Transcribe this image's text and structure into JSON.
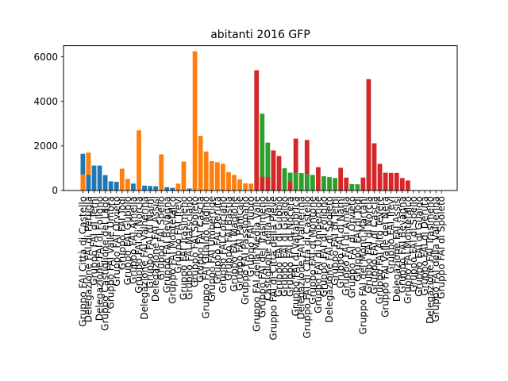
{
  "chart_data": {
    "type": "bar",
    "title": "abitanti  2016  GFP",
    "xlabel": "",
    "ylabel": "",
    "ylim": [
      0,
      6500
    ],
    "yticks": [
      0,
      2000,
      4000,
      6000
    ],
    "grid": false,
    "colors": {
      "blue": "#1f77b4",
      "orange": "#ff7f0e",
      "green": "#2ca02c",
      "red": "#d62728"
    },
    "bars": [
      {
        "slot": 0,
        "color": "blue",
        "value": 1650
      },
      {
        "slot": 0,
        "color": "orange",
        "value": 720
      },
      {
        "slot": 1,
        "color": "orange",
        "value": 1700
      },
      {
        "slot": 1,
        "color": "blue",
        "value": 700
      },
      {
        "slot": 2,
        "color": "blue",
        "value": 1120
      },
      {
        "slot": 3,
        "color": "blue",
        "value": 1120
      },
      {
        "slot": 4,
        "color": "blue",
        "value": 690
      },
      {
        "slot": 5,
        "color": "blue",
        "value": 410
      },
      {
        "slot": 6,
        "color": "blue",
        "value": 390
      },
      {
        "slot": 7,
        "color": "orange",
        "value": 980
      },
      {
        "slot": 8,
        "color": "orange",
        "value": 520
      },
      {
        "slot": 9,
        "color": "blue",
        "value": 310
      },
      {
        "slot": 10,
        "color": "orange",
        "value": 2700
      },
      {
        "slot": 11,
        "color": "blue",
        "value": 220
      },
      {
        "slot": 12,
        "color": "blue",
        "value": 200
      },
      {
        "slot": 13,
        "color": "blue",
        "value": 190
      },
      {
        "slot": 14,
        "color": "orange",
        "value": 1620
      },
      {
        "slot": 15,
        "color": "blue",
        "value": 150
      },
      {
        "slot": 16,
        "color": "blue",
        "value": 120
      },
      {
        "slot": 17,
        "color": "orange",
        "value": 310
      },
      {
        "slot": 18,
        "color": "orange",
        "value": 1300
      },
      {
        "slot": 19,
        "color": "blue",
        "value": 90
      },
      {
        "slot": 20,
        "color": "orange",
        "value": 6250
      },
      {
        "slot": 21,
        "color": "orange",
        "value": 2450
      },
      {
        "slot": 22,
        "color": "orange",
        "value": 1750
      },
      {
        "slot": 23,
        "color": "orange",
        "value": 1320
      },
      {
        "slot": 24,
        "color": "orange",
        "value": 1270
      },
      {
        "slot": 25,
        "color": "orange",
        "value": 1200
      },
      {
        "slot": 26,
        "color": "orange",
        "value": 820
      },
      {
        "slot": 27,
        "color": "orange",
        "value": 700
      },
      {
        "slot": 28,
        "color": "orange",
        "value": 500
      },
      {
        "slot": 29,
        "color": "orange",
        "value": 320
      },
      {
        "slot": 30,
        "color": "orange",
        "value": 310
      },
      {
        "slot": 31,
        "color": "red",
        "value": 5400
      },
      {
        "slot": 32,
        "color": "green",
        "value": 3450
      },
      {
        "slot": 32,
        "color": "red",
        "value": 620
      },
      {
        "slot": 33,
        "color": "green",
        "value": 2150
      },
      {
        "slot": 33,
        "color": "red",
        "value": 600
      },
      {
        "slot": 34,
        "color": "red",
        "value": 1800
      },
      {
        "slot": 35,
        "color": "red",
        "value": 1550
      },
      {
        "slot": 36,
        "color": "green",
        "value": 1000
      },
      {
        "slot": 37,
        "color": "green",
        "value": 800
      },
      {
        "slot": 37,
        "color": "red",
        "value": 400
      },
      {
        "slot": 38,
        "color": "red",
        "value": 2330
      },
      {
        "slot": 38,
        "color": "green",
        "value": 800
      },
      {
        "slot": 39,
        "color": "green",
        "value": 780
      },
      {
        "slot": 40,
        "color": "red",
        "value": 2270
      },
      {
        "slot": 40,
        "color": "green",
        "value": 750
      },
      {
        "slot": 41,
        "color": "green",
        "value": 700
      },
      {
        "slot": 42,
        "color": "red",
        "value": 1050
      },
      {
        "slot": 43,
        "color": "green",
        "value": 640
      },
      {
        "slot": 44,
        "color": "green",
        "value": 600
      },
      {
        "slot": 45,
        "color": "green",
        "value": 560
      },
      {
        "slot": 46,
        "color": "red",
        "value": 1020
      },
      {
        "slot": 47,
        "color": "red",
        "value": 580
      },
      {
        "slot": 48,
        "color": "green",
        "value": 290
      },
      {
        "slot": 49,
        "color": "green",
        "value": 280
      },
      {
        "slot": 50,
        "color": "red",
        "value": 580
      },
      {
        "slot": 51,
        "color": "red",
        "value": 5000
      },
      {
        "slot": 52,
        "color": "red",
        "value": 2120
      },
      {
        "slot": 53,
        "color": "red",
        "value": 1200
      },
      {
        "slot": 54,
        "color": "red",
        "value": 800
      },
      {
        "slot": 55,
        "color": "red",
        "value": 790
      },
      {
        "slot": 56,
        "color": "red",
        "value": 790
      },
      {
        "slot": 57,
        "color": "red",
        "value": 560
      },
      {
        "slot": 58,
        "color": "red",
        "value": 450
      },
      {
        "slot": 59,
        "color": "red",
        "value": 20
      },
      {
        "slot": 60,
        "color": "red",
        "value": 10
      },
      {
        "slot": 61,
        "color": "red",
        "value": 10
      },
      {
        "slot": 62,
        "color": "red",
        "value": 10
      },
      {
        "slot": 63,
        "color": "red",
        "value": 10
      },
      {
        "slot": 64,
        "color": "red",
        "value": 10
      }
    ],
    "labels": [
      {
        "slot": 0,
        "text": "Gruppo FAI Città di Castello"
      },
      {
        "slot": 1,
        "text": "Delegazione FAI di Perugia"
      },
      {
        "slot": 2,
        "text": "Gruppo FAI di Terni"
      },
      {
        "slot": 3,
        "text": "Delegazione FAI di Foligno"
      },
      {
        "slot": 4,
        "text": "Gruppo Castiglione del Lago"
      },
      {
        "slot": 5,
        "text": "Gruppo FAI Valle Umbra"
      },
      {
        "slot": 6,
        "text": "Gruppo FAI Orvieto"
      },
      {
        "slot": 7,
        "text": "Gruppo FAI Todi"
      },
      {
        "slot": 8,
        "text": "Gruppo FAI Gubbio"
      },
      {
        "slot": 9,
        "text": "Gruppo FAI Amelia"
      },
      {
        "slot": 10,
        "text": "Gruppo FAI di Norcia"
      },
      {
        "slot": 11,
        "text": "Delegazione FAI Valnerina"
      },
      {
        "slot": 12,
        "text": "Gruppo FAI di Narni"
      },
      {
        "slot": 13,
        "text": "Delegazione FAI Assisi"
      },
      {
        "slot": 14,
        "text": "Gruppo FAI Spello"
      },
      {
        "slot": 15,
        "text": "Gruppo FAI Bevagna"
      },
      {
        "slot": 16,
        "text": "Gruppo FAI Montefalco"
      },
      {
        "slot": 17,
        "text": "Gruppo FAI Trevi"
      },
      {
        "slot": 18,
        "text": "Gruppo FAI Trasimeno"
      },
      {
        "slot": 19,
        "text": "Gruppo FAI Marsciano"
      },
      {
        "slot": 20,
        "text": "Gruppo FAI Spoleto"
      },
      {
        "slot": 21,
        "text": "Gruppo FAI Cascia"
      },
      {
        "slot": 22,
        "text": "Gruppo FAI Gualdo Tadino"
      },
      {
        "slot": 23,
        "text": "Gruppo FAI Umbertide"
      },
      {
        "slot": 24,
        "text": "Gruppo FAI Deruta"
      },
      {
        "slot": 25,
        "text": "Gruppo FAI Corciano"
      },
      {
        "slot": 26,
        "text": "Gruppo FAI Bastia"
      },
      {
        "slot": 27,
        "text": "Gruppo FAI Magione"
      },
      {
        "slot": 28,
        "text": "Gruppo FAI Panicale"
      },
      {
        "slot": 29,
        "text": "Gruppo FAI Passignano"
      },
      {
        "slot": 30,
        "text": "Gruppo FAI Tuoro"
      },
      {
        "slot": 31,
        "text": "Gruppo FAI della Media Valle"
      },
      {
        "slot": 32,
        "text": "Gruppo FAI del Trasimeno"
      },
      {
        "slot": 33,
        "text": "Castiglione della Valle"
      },
      {
        "slot": 34,
        "text": "Gruppo FAI di Città della Pieve"
      },
      {
        "slot": 35,
        "text": "Gruppo FAI di Gubbio"
      },
      {
        "slot": 36,
        "text": "Gruppo FAI di Gualdo"
      },
      {
        "slot": 37,
        "text": "Gruppo FAI di Nocera"
      },
      {
        "slot": 38,
        "text": "Gruppo FAI di Valfabbrica"
      },
      {
        "slot": 39,
        "text": "Delegazione FAI Valnerina"
      },
      {
        "slot": 40,
        "text": "Gruppo FAI di Città di Castello"
      },
      {
        "slot": 41,
        "text": "Gruppo FAI di Montone"
      },
      {
        "slot": 42,
        "text": "Gruppo FAI di Umbertide"
      },
      {
        "slot": 43,
        "text": "Gruppo FAI di Foligno"
      },
      {
        "slot": 44,
        "text": "Delegazione FAI di Spoleto"
      },
      {
        "slot": 45,
        "text": "Gruppo FAI di Terni"
      },
      {
        "slot": 46,
        "text": "Gruppo FAI di Narni"
      },
      {
        "slot": 47,
        "text": "Gruppo FAI di Amelia"
      },
      {
        "slot": 48,
        "text": "Gruppo FAI di Orvieto"
      },
      {
        "slot": 49,
        "text": "Gruppo FAI di Todi"
      },
      {
        "slot": 50,
        "text": "Gruppo FAI dei Monti Martani"
      },
      {
        "slot": 51,
        "text": "Gruppo FAI di Norcia"
      },
      {
        "slot": 52,
        "text": "Gruppo FAI di Cascia"
      },
      {
        "slot": 53,
        "text": "Gruppo FAI Alto Tevere"
      },
      {
        "slot": 54,
        "text": "Gruppo FAI Valle del Nera"
      },
      {
        "slot": 55,
        "text": "Gruppo FAI Trevi"
      },
      {
        "slot": 56,
        "text": "Delegazione FAI Assisi"
      },
      {
        "slot": 57,
        "text": "Gruppo FAI Bevagna"
      },
      {
        "slot": 58,
        "text": "Gruppo FAI Montefalco"
      },
      {
        "slot": 59,
        "text": "Gruppo FAI di Spello"
      },
      {
        "slot": 60,
        "text": "Gruppo FAI di Gualdo"
      },
      {
        "slot": 61,
        "text": "Gruppo FAI di Deruta"
      },
      {
        "slot": 62,
        "text": "Delegazione FAI Trasimeno"
      },
      {
        "slot": 63,
        "text": "Gruppo FAI della Valnerina"
      },
      {
        "slot": 64,
        "text": "Gruppo FAI di Spoleto"
      }
    ]
  }
}
